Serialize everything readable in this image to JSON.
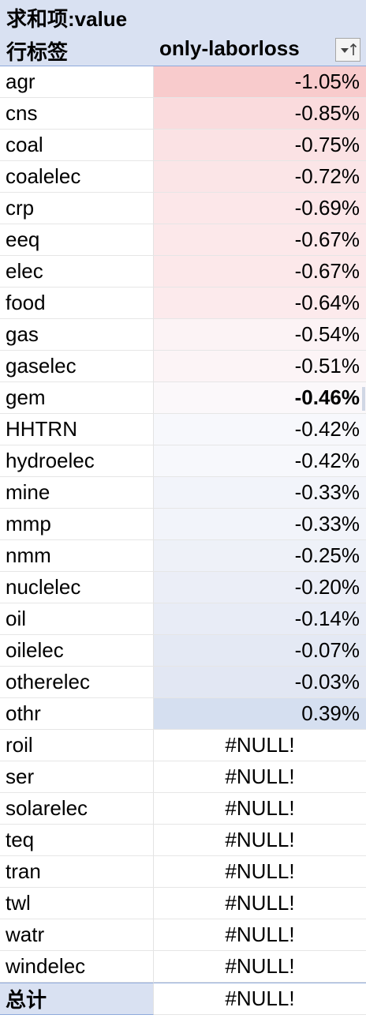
{
  "pivot": {
    "title": "求和项:value",
    "row_label_header": "行标签",
    "column_header": "only-laborloss",
    "total_label": "总计",
    "total_value": "#NULL!",
    "rows": [
      {
        "label": "agr",
        "value": "-1.05%",
        "color": "#f8cbcc"
      },
      {
        "label": "cns",
        "value": "-0.85%",
        "color": "#fadbdd"
      },
      {
        "label": "coal",
        "value": "-0.75%",
        "color": "#fbe2e4"
      },
      {
        "label": "coalelec",
        "value": "-0.72%",
        "color": "#fbe5e7"
      },
      {
        "label": "crp",
        "value": "-0.69%",
        "color": "#fce7e9"
      },
      {
        "label": "eeq",
        "value": "-0.67%",
        "color": "#fce8ea"
      },
      {
        "label": "elec",
        "value": "-0.67%",
        "color": "#fce8ea"
      },
      {
        "label": "food",
        "value": "-0.64%",
        "color": "#fceaec"
      },
      {
        "label": "gas",
        "value": "-0.54%",
        "color": "#fcf3f5"
      },
      {
        "label": "gaselec",
        "value": "-0.51%",
        "color": "#fcf4f6"
      },
      {
        "label": "gem",
        "value": "-0.46%",
        "color": "#fbf8fa",
        "bold": true
      },
      {
        "label": "HHTRN",
        "value": "-0.42%",
        "color": "#f7f8fc"
      },
      {
        "label": "hydroelec",
        "value": "-0.42%",
        "color": "#f7f8fc"
      },
      {
        "label": "mine",
        "value": "-0.33%",
        "color": "#f2f4fa"
      },
      {
        "label": "mmp",
        "value": "-0.33%",
        "color": "#f2f4fa"
      },
      {
        "label": "nmm",
        "value": "-0.25%",
        "color": "#eef1f8"
      },
      {
        "label": "nuclelec",
        "value": "-0.20%",
        "color": "#ebeef7"
      },
      {
        "label": "oil",
        "value": "-0.14%",
        "color": "#e8ecf6"
      },
      {
        "label": "oilelec",
        "value": "-0.07%",
        "color": "#e4e9f4"
      },
      {
        "label": "otherelec",
        "value": "-0.03%",
        "color": "#e2e7f3"
      },
      {
        "label": "othr",
        "value": "0.39%",
        "color": "#d5dff0"
      },
      {
        "label": "roil",
        "value": "#NULL!",
        "color": "#ffffff",
        "null": true
      },
      {
        "label": "ser",
        "value": "#NULL!",
        "color": "#ffffff",
        "null": true
      },
      {
        "label": "solarelec",
        "value": "#NULL!",
        "color": "#ffffff",
        "null": true
      },
      {
        "label": "teq",
        "value": "#NULL!",
        "color": "#ffffff",
        "null": true
      },
      {
        "label": "tran",
        "value": "#NULL!",
        "color": "#ffffff",
        "null": true
      },
      {
        "label": "twl",
        "value": "#NULL!",
        "color": "#ffffff",
        "null": true
      },
      {
        "label": "watr",
        "value": "#NULL!",
        "color": "#ffffff",
        "null": true
      },
      {
        "label": "windelec",
        "value": "#NULL!",
        "color": "#ffffff",
        "null": true
      }
    ]
  },
  "icons": {
    "filter": "sort-filter-icon"
  },
  "colors": {
    "header_bg": "#d9e1f2",
    "header_border": "#8ea9db"
  }
}
